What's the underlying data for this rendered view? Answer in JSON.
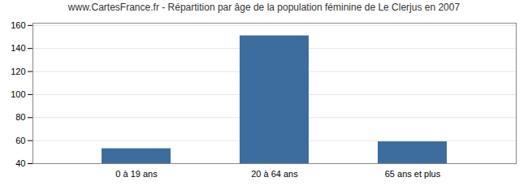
{
  "chart_data": {
    "type": "bar",
    "title": "www.CartesFrance.fr - Répartition par âge de la population féminine de Le Clerjus en 2007",
    "categories": [
      "0 à 19 ans",
      "20 à 64 ans",
      "65 ans et plus"
    ],
    "values": [
      53,
      151,
      59
    ],
    "color": "#3d6d9e",
    "ylim": [
      40,
      162
    ],
    "yticks": [
      40,
      60,
      80,
      100,
      120,
      140,
      160
    ],
    "grid": true
  }
}
